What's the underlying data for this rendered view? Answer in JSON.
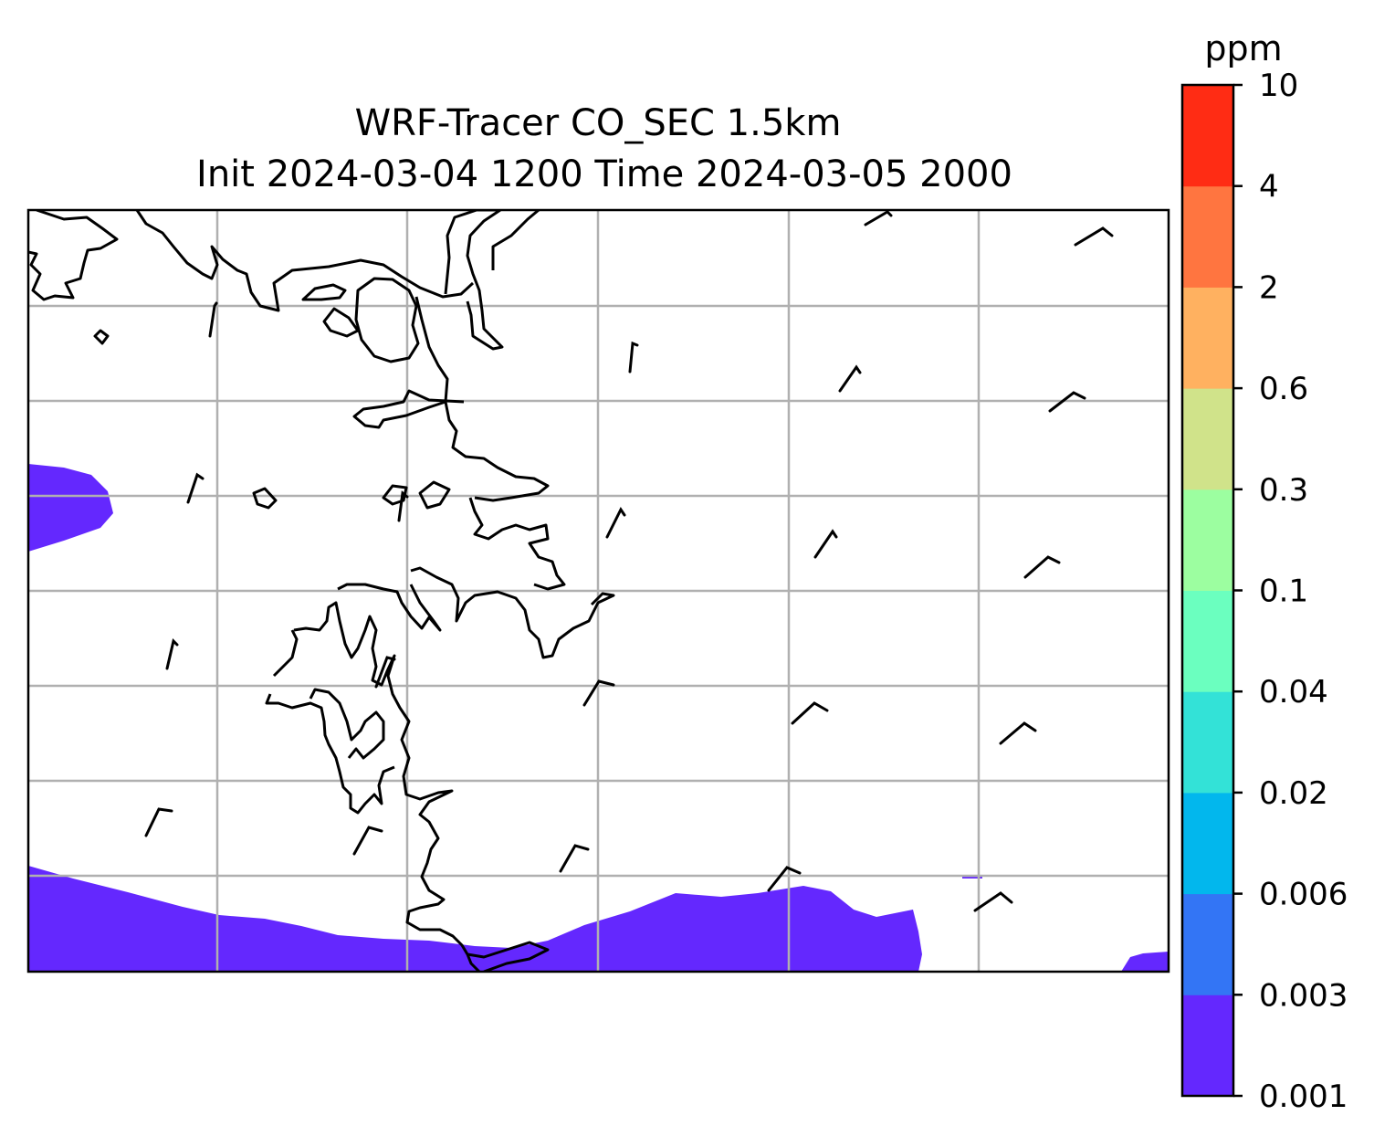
{
  "title_line1": "WRF-Tracer CO_SEC 1.5km",
  "title_line2": "Init 2024-03-04 1200 Time 2024-03-05 2000",
  "colorbar": {
    "unit": "ppm",
    "levels": [
      "0.001",
      "0.003",
      "0.006",
      "0.02",
      "0.04",
      "0.1",
      "0.3",
      "0.6",
      "2",
      "4",
      "10"
    ],
    "colors": [
      "#6428fe",
      "#3375f5",
      "#02b7ed",
      "#33e2d7",
      "#6bffbf",
      "#9cfea0",
      "#d0e38a",
      "#ffb160",
      "#ff7540",
      "#ff2c14"
    ]
  },
  "map": {
    "gridlines": true,
    "gridline_color": "#b0b0b0",
    "coastline_color": "#000000",
    "fill_color": "#6428fe"
  }
}
